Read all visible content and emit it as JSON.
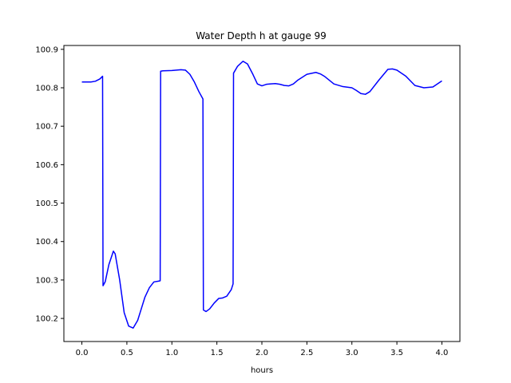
{
  "chart_data": {
    "type": "line",
    "title": "Water Depth h at gauge 99",
    "xlabel": "hours",
    "ylabel": "",
    "xlim": [
      -0.2,
      4.2
    ],
    "ylim": [
      100.14,
      100.91
    ],
    "x_ticks": [
      0.0,
      0.5,
      1.0,
      1.5,
      2.0,
      2.5,
      3.0,
      3.5,
      4.0
    ],
    "x_tick_labels": [
      "0.0",
      "0.5",
      "1.0",
      "1.5",
      "2.0",
      "2.5",
      "3.0",
      "3.5",
      "4.0"
    ],
    "y_ticks": [
      100.2,
      100.3,
      100.4,
      100.5,
      100.6,
      100.7,
      100.8,
      100.9
    ],
    "y_tick_labels": [
      "100.2",
      "100.3",
      "100.4",
      "100.5",
      "100.6",
      "100.7",
      "100.8",
      "100.9"
    ],
    "grid": false,
    "series": [
      {
        "color": "#0000ff",
        "x": [
          0.0,
          0.1,
          0.15,
          0.2,
          0.23,
          0.235,
          0.26,
          0.3,
          0.35,
          0.37,
          0.42,
          0.47,
          0.52,
          0.57,
          0.62,
          0.66,
          0.7,
          0.75,
          0.8,
          0.85,
          0.87,
          0.875,
          0.9,
          1.0,
          1.1,
          1.15,
          1.2,
          1.25,
          1.3,
          1.345,
          1.35,
          1.38,
          1.42,
          1.47,
          1.52,
          1.56,
          1.61,
          1.66,
          1.68,
          1.685,
          1.73,
          1.79,
          1.84,
          1.9,
          1.95,
          2.0,
          2.05,
          2.1,
          2.15,
          2.2,
          2.25,
          2.3,
          2.35,
          2.4,
          2.5,
          2.6,
          2.65,
          2.7,
          2.8,
          2.9,
          3.0,
          3.05,
          3.1,
          3.15,
          3.2,
          3.3,
          3.4,
          3.45,
          3.5,
          3.6,
          3.7,
          3.8,
          3.9,
          4.0
        ],
        "y": [
          100.815,
          100.815,
          100.817,
          100.823,
          100.83,
          100.285,
          100.296,
          100.34,
          100.375,
          100.368,
          100.3,
          100.215,
          100.18,
          100.175,
          100.195,
          100.225,
          100.255,
          100.28,
          100.295,
          100.297,
          100.298,
          100.843,
          100.844,
          100.845,
          100.847,
          100.846,
          100.835,
          100.815,
          100.79,
          100.771,
          100.222,
          100.218,
          100.225,
          100.24,
          100.252,
          100.253,
          100.258,
          100.275,
          100.29,
          100.838,
          100.856,
          100.869,
          100.862,
          100.835,
          100.81,
          100.805,
          100.809,
          100.81,
          100.811,
          100.809,
          100.806,
          100.805,
          100.81,
          100.82,
          100.835,
          100.84,
          100.836,
          100.829,
          100.81,
          100.803,
          100.8,
          100.793,
          100.785,
          100.783,
          100.79,
          100.82,
          100.848,
          100.849,
          100.846,
          100.83,
          100.806,
          100.8,
          100.802,
          100.818
        ]
      }
    ]
  }
}
